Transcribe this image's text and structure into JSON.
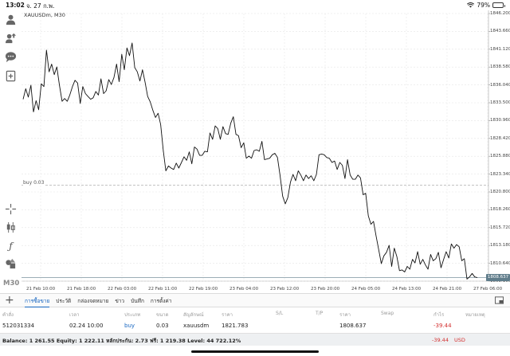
{
  "status_bar": {
    "time": "13:02",
    "date": "จ. 27 ก.พ.",
    "battery": "79%",
    "battery_level": 0.79
  },
  "left_toolbar": {
    "icons": [
      "user-icon",
      "trade-icon",
      "chat-icon",
      "new-chart-icon",
      "crosshair-icon",
      "indicators-icon",
      "function-icon",
      "objects-icon"
    ],
    "timeframe": "M30"
  },
  "chart": {
    "title": "XAUUSDm, M30",
    "buy_line_label": "buy 0.03",
    "current_price_label": "1808.637",
    "colors": {
      "line": "#111111",
      "grid": "#e6e6e6",
      "buy_line": "#9e9e9e",
      "price_line": "#607d8b"
    }
  },
  "chart_data": {
    "type": "line",
    "symbol": "XAUUSDm",
    "timeframe": "M30",
    "title": "XAUUSDm, M30",
    "y_ticks": [
      "1846.200",
      "1843.660",
      "1841.120",
      "1838.580",
      "1836.040",
      "1833.500",
      "1830.960",
      "1828.420",
      "1825.880",
      "1823.340",
      "1820.800",
      "1818.260",
      "1815.720",
      "1813.180",
      "1810.640",
      "1808.100"
    ],
    "ylim": [
      1808.1,
      1846.2
    ],
    "x_ticks": [
      "21 Feb 10:00",
      "21 Feb 18:00",
      "22 Feb 03:00",
      "22 Feb 11:00",
      "22 Feb 19:00",
      "23 Feb 04:00",
      "23 Feb 12:00",
      "23 Feb 20:00",
      "24 Feb 05:00",
      "24 Feb 13:00",
      "24 Feb 21:00",
      "27 Feb 06:00"
    ],
    "series": [
      {
        "values": [
          1834.0,
          1835.5,
          1834.3,
          1836.0,
          1832.2,
          1833.8,
          1832.5,
          1836.2,
          1835.8,
          1841.0,
          1837.9,
          1839.0,
          1837.5,
          1838.6,
          1836.0,
          1833.7,
          1834.1,
          1833.7,
          1834.6,
          1835.8,
          1836.7,
          1836.3,
          1833.4,
          1835.8,
          1834.8,
          1834.4,
          1834.0,
          1834.2,
          1835.1,
          1834.6,
          1836.9,
          1834.8,
          1835.2,
          1836.8,
          1836.1,
          1837.1,
          1839.0,
          1836.5,
          1840.4,
          1838.2,
          1841.3,
          1840.2,
          1842.0,
          1838.5,
          1837.9,
          1836.6,
          1838.2,
          1836.4,
          1834.4,
          1833.6,
          1832.4,
          1831.4,
          1832.0,
          1830.4,
          1826.7,
          1823.8,
          1824.5,
          1824.2,
          1824.0,
          1824.9,
          1824.2,
          1825.0,
          1825.8,
          1825.3,
          1826.5,
          1824.8,
          1827.2,
          1826.9,
          1826.0,
          1826.0,
          1826.6,
          1826.5,
          1829.2,
          1828.3,
          1830.2,
          1829.8,
          1828.3,
          1830.1,
          1829.1,
          1829.0,
          1830.6,
          1831.5,
          1829.0,
          1828.8,
          1827.1,
          1827.8,
          1825.6,
          1825.9,
          1825.6,
          1826.7,
          1826.8,
          1826.6,
          1828.0,
          1825.4,
          1825.5,
          1825.6,
          1826.1,
          1826.3,
          1825.7,
          1823.1,
          1820.2,
          1819.1,
          1820.0,
          1822.2,
          1823.3,
          1822.4,
          1823.8,
          1823.2,
          1822.4,
          1823.2,
          1822.7,
          1823.1,
          1822.4,
          1823.3,
          1826.1,
          1826.2,
          1826.1,
          1825.7,
          1825.6,
          1825.0,
          1825.2,
          1824.0,
          1825.0,
          1824.6,
          1822.7,
          1825.4,
          1823.2,
          1822.6,
          1822.6,
          1823.2,
          1822.8,
          1820.4,
          1820.6,
          1817.4,
          1816.2,
          1816.6,
          1814.5,
          1812.6,
          1810.6,
          1811.7,
          1812.2,
          1813.2,
          1810.2,
          1812.8,
          1811.6,
          1809.6,
          1809.7,
          1809.4,
          1810.2,
          1809.8,
          1811.2,
          1810.7,
          1812.3,
          1810.5,
          1811.2,
          1810.4,
          1809.8,
          1811.9,
          1811.0,
          1811.3,
          1812.2,
          1810.0,
          1811.2,
          1812.3,
          1811.4,
          1813.4,
          1812.8,
          1813.3,
          1813.0,
          1811.0,
          1811.3,
          1808.4,
          1808.7,
          1809.2,
          1808.7,
          1808.6
        ]
      }
    ],
    "buy_level": 1821.783,
    "current_price": 1808.637,
    "grid": true
  },
  "tabs": {
    "items": [
      "การซื้อขาย",
      "ประวัติ",
      "กล่องจดหมาย",
      "ข่าว",
      "บันทึก",
      "การตั้งค่า"
    ],
    "active_index": 0
  },
  "table": {
    "headers": [
      "คำสั่ง",
      "เวลา",
      "ประเภท",
      "ขนาด",
      "สัญลักษณ์",
      "ราคา",
      "S/L",
      "T/P",
      "ราคา",
      "Swap",
      "กำไร",
      "หมายเหตุ"
    ],
    "rows": [
      [
        "512031334",
        "02.24 10:00",
        "buy",
        "0.03",
        "xauusdm",
        "1821.783",
        "",
        "",
        "1808.637",
        "",
        "-39.44",
        ""
      ]
    ]
  },
  "balance": {
    "summary": "Balance: 1 261.55 Equity: 1 222.11 หลักประกัน: 2.73 ฟรี: 1 219.38 Level: 44 722.12%",
    "profit": "-39.44",
    "currency": "USD"
  }
}
